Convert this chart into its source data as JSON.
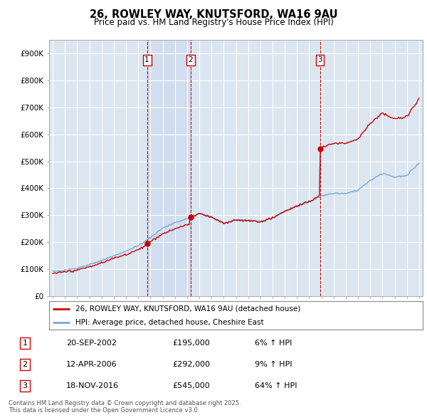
{
  "title": "26, ROWLEY WAY, KNUTSFORD, WA16 9AU",
  "subtitle": "Price paid vs. HM Land Registry's House Price Index (HPI)",
  "plot_bg": "#dce6f1",
  "grid_color": "#ffffff",
  "ylim": [
    0,
    950000
  ],
  "yticks": [
    0,
    100000,
    200000,
    300000,
    400000,
    500000,
    600000,
    700000,
    800000,
    900000
  ],
  "ytick_labels": [
    "£0",
    "£100K",
    "£200K",
    "£300K",
    "£400K",
    "£500K",
    "£600K",
    "£700K",
    "£800K",
    "£900K"
  ],
  "legend_label_red": "26, ROWLEY WAY, KNUTSFORD, WA16 9AU (detached house)",
  "legend_label_blue": "HPI: Average price, detached house, Cheshire East",
  "sale_date_1": "20-SEP-2002",
  "sale_price_1": "£195,000",
  "sale_change_1": "6% ↑ HPI",
  "sale_date_2": "12-APR-2006",
  "sale_price_2": "£292,000",
  "sale_change_2": "9% ↑ HPI",
  "sale_date_3": "18-NOV-2016",
  "sale_price_3": "£545,000",
  "sale_change_3": "64% ↑ HPI",
  "footnote": "Contains HM Land Registry data © Crown copyright and database right 2025.\nThis data is licensed under the Open Government Licence v3.0.",
  "sale1_year": 2002.72,
  "sale1_price": 195000,
  "sale2_year": 2006.28,
  "sale2_price": 292000,
  "sale3_year": 2016.88,
  "sale3_price": 545000,
  "red_line_color": "#cc0000",
  "blue_line_color": "#7ba7d4",
  "vline_color": "#cc0000",
  "box_edge_color": "#cc0000",
  "shade_color": "#c8d8ee",
  "hpi_years": [
    1995,
    1996,
    1997,
    1998,
    1999,
    2000,
    2001,
    2002,
    2003,
    2004,
    2005,
    2006,
    2007,
    2008,
    2009,
    2010,
    2011,
    2012,
    2013,
    2014,
    2015,
    2016,
    2017,
    2018,
    2019,
    2020,
    2021,
    2022,
    2023,
    2024,
    2025
  ],
  "hpi_values": [
    92000,
    96000,
    105000,
    118000,
    133000,
    152000,
    168000,
    188000,
    218000,
    252000,
    272000,
    286000,
    308000,
    295000,
    272000,
    285000,
    283000,
    278000,
    292000,
    315000,
    335000,
    350000,
    373000,
    383000,
    383000,
    395000,
    432000,
    458000,
    445000,
    450000,
    498000
  ]
}
